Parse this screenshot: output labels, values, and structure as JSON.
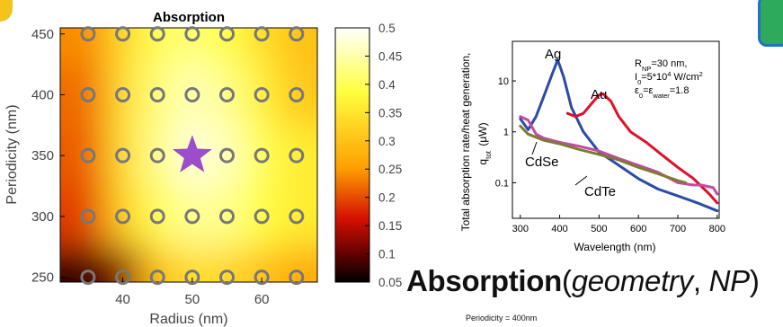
{
  "colors": {
    "accent_star": "#9b4dca",
    "marker_stroke": "#777777",
    "marker_fill": "#ffff66",
    "ag": "#2c4aa8",
    "au": "#e0102a",
    "cdse": "#c24ca0",
    "cdte": "#7e7a34",
    "badge_yellow": "#f6c21c",
    "badge_green": "#2eaa5d",
    "badge_blue": "#1f72c4"
  },
  "chart_data": [
    {
      "type": "heatmap",
      "title": "Absorption",
      "xlabel": "Radius (nm)",
      "ylabel": "Periodicity (nm)",
      "xlim": [
        31,
        68
      ],
      "ylim": [
        246,
        455
      ],
      "xticks": [
        40,
        50,
        60
      ],
      "yticks": [
        250,
        300,
        350,
        400,
        450
      ],
      "colorbar": {
        "min": 0.05,
        "max": 0.5,
        "ticks": [
          "0.5",
          "0.45",
          "0.4",
          "0.35",
          "0.3",
          "0.25",
          "0.2",
          "0.15",
          "0.1",
          "0.05"
        ]
      },
      "markers": {
        "x": [
          35,
          40,
          45,
          50,
          55,
          60,
          65
        ],
        "y": [
          250,
          300,
          350,
          400,
          450
        ],
        "values": [
          [
            0.07,
            0.12,
            0.3,
            0.34,
            0.33,
            0.3,
            0.27
          ],
          [
            0.19,
            0.32,
            0.4,
            0.44,
            0.43,
            0.39,
            0.36
          ],
          [
            0.21,
            0.34,
            0.43,
            0.48,
            0.46,
            0.4,
            0.36
          ],
          [
            0.22,
            0.34,
            0.42,
            0.46,
            0.43,
            0.37,
            0.31
          ],
          [
            0.24,
            0.33,
            0.4,
            0.42,
            0.39,
            0.34,
            0.3
          ]
        ]
      },
      "highlight": {
        "x": 50,
        "y": 350,
        "marker": "star"
      }
    },
    {
      "type": "line",
      "xlabel": "Wavelength (nm)",
      "ylabel": "Total absorption rate/heat generation,",
      "ylabel_unit": "q_tot (μW)",
      "xlim": [
        280,
        805
      ],
      "ylim_log": [
        0.02,
        60
      ],
      "xticks": [
        300,
        400,
        500,
        600,
        700,
        800
      ],
      "yticks": [
        {
          "value": 0.1,
          "label": "0.1"
        },
        {
          "value": 1,
          "label": "1"
        },
        {
          "value": 10,
          "label": "10"
        }
      ],
      "annotation": [
        "R_NP=30 nm,",
        "I_0=5*10^4 W/cm^2",
        "ε_0=ε_water=1.8"
      ],
      "series": [
        {
          "name": "Ag",
          "color": "#2c4aa8",
          "x": [
            300,
            320,
            340,
            360,
            380,
            395,
            410,
            430,
            460,
            500,
            550,
            600,
            650,
            700,
            750,
            800
          ],
          "y": [
            1.8,
            1.1,
            2.0,
            5.0,
            13,
            26,
            12,
            3.0,
            1.0,
            0.4,
            0.22,
            0.12,
            0.075,
            0.055,
            0.04,
            0.028
          ]
        },
        {
          "name": "Au",
          "color": "#e0102a",
          "x": [
            420,
            440,
            460,
            480,
            500,
            510,
            530,
            550,
            580,
            620,
            660,
            700,
            740,
            780,
            800
          ],
          "y": [
            2.3,
            2.0,
            2.3,
            3.5,
            5.3,
            5.6,
            4.0,
            2.0,
            1.0,
            0.62,
            0.35,
            0.2,
            0.12,
            0.06,
            0.04
          ]
        },
        {
          "name": "CdSe",
          "color": "#c24ca0",
          "x": [
            300,
            320,
            340,
            360,
            400,
            450,
            500,
            550,
            600,
            650,
            700,
            740,
            760,
            790,
            800
          ],
          "y": [
            2.0,
            1.7,
            0.9,
            0.75,
            0.62,
            0.52,
            0.42,
            0.3,
            0.22,
            0.16,
            0.1,
            0.09,
            0.09,
            0.08,
            0.06
          ]
        },
        {
          "name": "CdTe",
          "color": "#7e7a34",
          "x": [
            300,
            320,
            360,
            400,
            450,
            500,
            550,
            600,
            650,
            700,
            720
          ],
          "y": [
            1.3,
            0.9,
            0.68,
            0.58,
            0.45,
            0.36,
            0.28,
            0.2,
            0.15,
            0.11,
            0.1
          ]
        }
      ]
    }
  ],
  "formula": {
    "main": "Absorption",
    "open": "(",
    "arg1": "geometry",
    "sep": ", ",
    "arg2": "NP",
    "close": ")"
  },
  "caption": "Periodicity = 400nm"
}
